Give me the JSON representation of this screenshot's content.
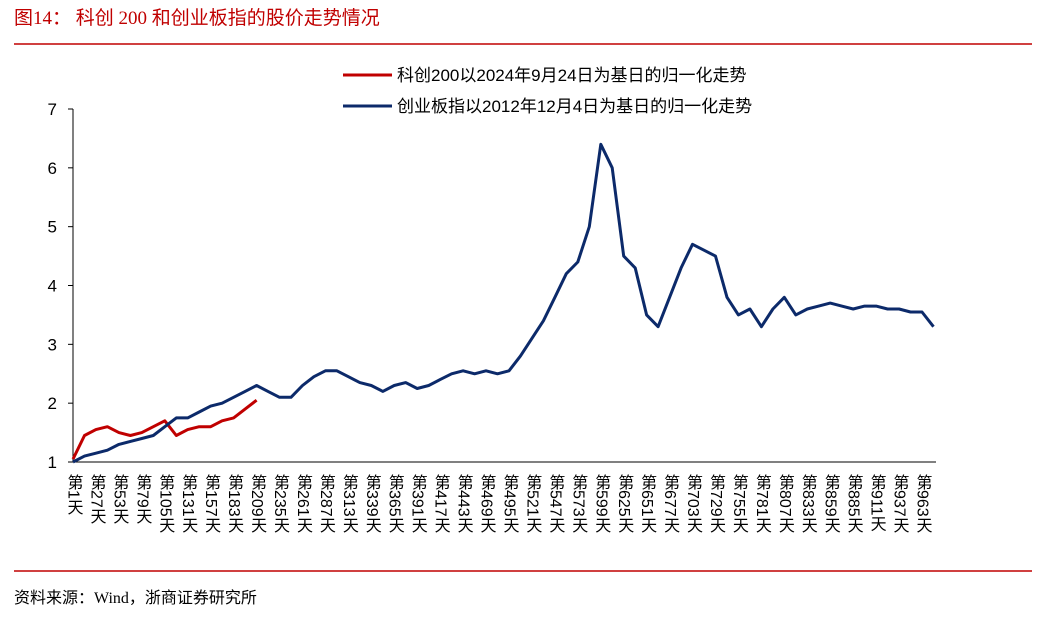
{
  "title": "图14：  科创 200 和创业板指的股价走势情况",
  "source": "资料来源：Wind，浙商证券研究所",
  "chart_data": {
    "type": "line",
    "categories": [
      "第1天",
      null,
      "第27天",
      null,
      "第53天",
      null,
      "第79天",
      null,
      "第105天",
      null,
      "第131天",
      null,
      "第157天",
      null,
      "第183天",
      null,
      "第209天",
      null,
      "第235天",
      null,
      "第261天",
      null,
      "第287天",
      null,
      "第313天",
      null,
      "第339天",
      null,
      "第365天",
      null,
      "第391天",
      null,
      "第417天",
      null,
      "第443天",
      null,
      "第469天",
      null,
      "第495天",
      null,
      "第521天",
      null,
      "第547天",
      null,
      "第573天",
      null,
      "第599天",
      null,
      "第625天",
      null,
      "第651天",
      null,
      "第677天",
      null,
      "第703天",
      null,
      "第729天",
      null,
      "第755天",
      null,
      "第781天",
      null,
      "第807天",
      null,
      "第833天",
      null,
      "第859天",
      null,
      "第885天",
      null,
      "第911天",
      null,
      "第937天",
      null,
      "第963天",
      null
    ],
    "series": [
      {
        "name": "科创200以2024年9月24日为基日的归一化走势",
        "color": "#c00000",
        "values": [
          1.05,
          1.45,
          1.55,
          1.6,
          1.5,
          1.45,
          1.5,
          1.6,
          1.7,
          1.45,
          1.55,
          1.6,
          1.6,
          1.7,
          1.75,
          1.9,
          2.05,
          null,
          null,
          null,
          null,
          null,
          null,
          null,
          null,
          null,
          null,
          null,
          null,
          null,
          null,
          null,
          null,
          null,
          null,
          null,
          null,
          null,
          null,
          null,
          null,
          null,
          null,
          null,
          null,
          null,
          null,
          null,
          null,
          null,
          null,
          null,
          null,
          null,
          null,
          null,
          null,
          null,
          null,
          null,
          null,
          null,
          null,
          null,
          null,
          null,
          null,
          null,
          null,
          null,
          null,
          null,
          null,
          null,
          null,
          null
        ]
      },
      {
        "name": "创业板指以2012年12月4日为基日的归一化走势",
        "color": "#0c2a6a",
        "values": [
          1.0,
          1.1,
          1.15,
          1.2,
          1.3,
          1.35,
          1.4,
          1.45,
          1.6,
          1.75,
          1.75,
          1.85,
          1.95,
          2.0,
          2.1,
          2.2,
          2.3,
          2.2,
          2.1,
          2.1,
          2.3,
          2.45,
          2.55,
          2.55,
          2.45,
          2.35,
          2.3,
          2.2,
          2.3,
          2.35,
          2.25,
          2.3,
          2.4,
          2.5,
          2.55,
          2.5,
          2.55,
          2.5,
          2.55,
          2.8,
          3.1,
          3.4,
          3.8,
          4.2,
          4.4,
          5.0,
          6.4,
          6.0,
          4.5,
          4.3,
          3.5,
          3.3,
          3.8,
          4.3,
          4.7,
          4.6,
          4.5,
          3.8,
          3.5,
          3.6,
          3.3,
          3.6,
          3.8,
          3.5,
          3.6,
          3.65,
          3.7,
          3.65,
          3.6,
          3.65,
          3.65,
          3.6,
          3.6,
          3.55,
          3.55,
          3.3
        ]
      }
    ],
    "ylim": [
      1,
      7
    ],
    "yticks": [
      1,
      2,
      3,
      4,
      5,
      6,
      7
    ],
    "grid": false
  }
}
